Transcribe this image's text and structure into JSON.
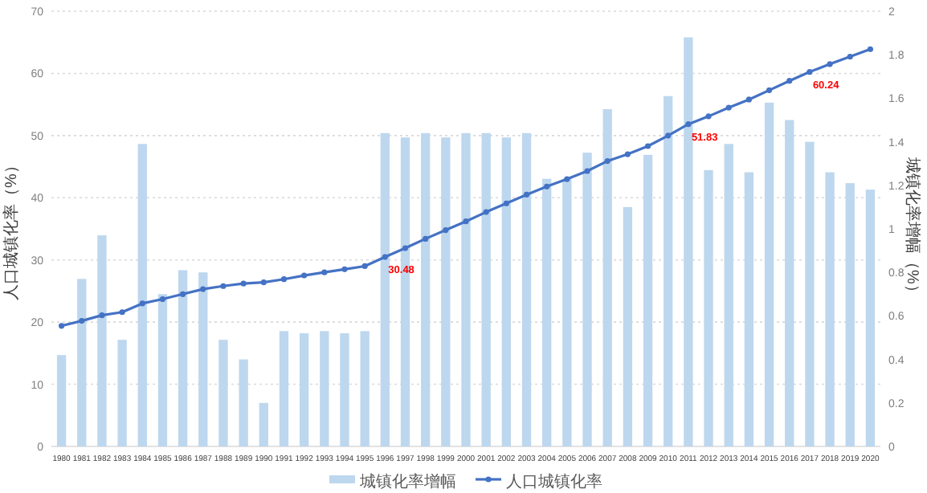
{
  "chart_data": {
    "type": "bar",
    "ylabel": "人口城镇化率（%）",
    "y2label": "城镇化率增幅（%）",
    "categories": [
      "1980",
      "1981",
      "1982",
      "1983",
      "1984",
      "1985",
      "1986",
      "1987",
      "1988",
      "1989",
      "1990",
      "1991",
      "1992",
      "1993",
      "1994",
      "1995",
      "1996",
      "1997",
      "1998",
      "1999",
      "2000",
      "2001",
      "2002",
      "2003",
      "2004",
      "2005",
      "2006",
      "2007",
      "2008",
      "2009",
      "2010",
      "2011",
      "2012",
      "2013",
      "2014",
      "2015",
      "2016",
      "2017",
      "2018",
      "2019",
      "2020"
    ],
    "series": [
      {
        "name": "城镇化率增幅",
        "axis": "y2",
        "color": "#bdd7ee",
        "values": [
          0.42,
          0.77,
          0.97,
          0.49,
          1.39,
          0.7,
          0.81,
          0.8,
          0.49,
          0.4,
          0.2,
          0.53,
          0.52,
          0.53,
          0.52,
          0.53,
          1.44,
          1.42,
          1.44,
          1.42,
          1.44,
          1.44,
          1.42,
          1.44,
          1.23,
          1.23,
          1.35,
          1.55,
          1.1,
          1.34,
          1.61,
          1.88,
          1.27,
          1.39,
          1.26,
          1.58,
          1.5,
          1.4,
          1.26,
          1.21,
          1.18
        ]
      },
      {
        "name": "人口城镇化率",
        "type": "line",
        "axis": "y",
        "color": "#4472c4",
        "marker": "circle",
        "values": [
          19.4,
          20.2,
          21.1,
          21.6,
          23,
          23.7,
          24.5,
          25.3,
          25.8,
          26.2,
          26.4,
          26.9,
          27.5,
          28,
          28.5,
          29,
          30.48,
          31.9,
          33.4,
          34.8,
          36.2,
          37.7,
          39.1,
          40.5,
          41.8,
          43,
          44.3,
          45.9,
          47,
          48.3,
          50,
          51.83,
          53.1,
          54.5,
          55.8,
          57.3,
          58.8,
          60.24,
          61.5,
          62.7,
          63.9
        ],
        "value_labels": [
          null,
          null,
          null,
          null,
          null,
          null,
          null,
          null,
          null,
          null,
          null,
          null,
          null,
          null,
          null,
          null,
          "30.48",
          null,
          null,
          null,
          null,
          null,
          null,
          null,
          null,
          null,
          null,
          null,
          null,
          null,
          null,
          "51.83",
          null,
          null,
          null,
          null,
          null,
          "60.24",
          null,
          null,
          null
        ]
      }
    ],
    "ylim": [
      0,
      70
    ],
    "yticks": [
      0,
      10,
      20,
      30,
      40,
      50,
      60,
      70
    ],
    "y2lim": [
      0,
      2
    ],
    "y2ticks": [
      0,
      0.2,
      0.4,
      0.6,
      0.8,
      1,
      1.2,
      1.4,
      1.6,
      1.8,
      2
    ],
    "grid": "y",
    "legend": "bottom"
  }
}
